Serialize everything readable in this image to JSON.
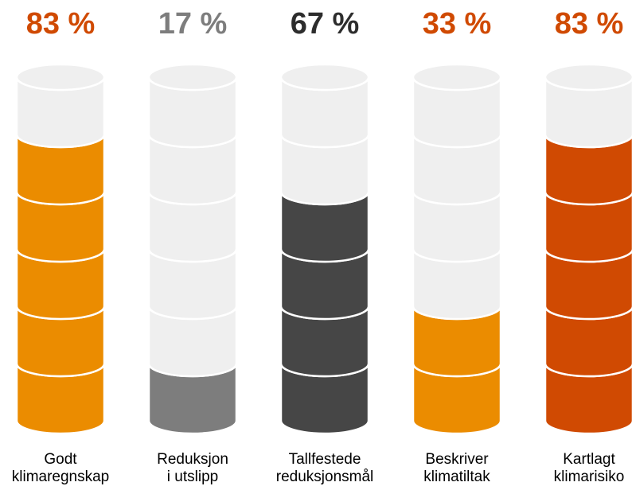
{
  "chart_data": {
    "type": "bar",
    "title": "",
    "xlabel": "",
    "ylabel": "",
    "unit": "%",
    "segments_per_bar": 6,
    "ylim": [
      0,
      100
    ],
    "grid": false,
    "categories": [
      [
        "Godt",
        "klimaregnskap"
      ],
      [
        "Reduksjon",
        "i utslipp"
      ],
      [
        "Tallfestede",
        "reduksjonsmål"
      ],
      [
        "Beskriver",
        "klimatiltak"
      ],
      [
        "Kartlagt",
        "klimarisiko"
      ]
    ],
    "values": [
      83,
      17,
      67,
      33,
      83
    ],
    "value_labels": [
      "83 %",
      "17 %",
      "67 %",
      "33 %",
      "83 %"
    ],
    "label_colors": [
      "#D04A02",
      "#7D7D7D",
      "#2D2D2D",
      "#D04A02",
      "#D04A02"
    ],
    "fill_colors": [
      "#EB8C00",
      "#7D7D7D",
      "#464646",
      "#EB8C00",
      "#D04A02"
    ],
    "empty_color": "#EFEFEF"
  }
}
